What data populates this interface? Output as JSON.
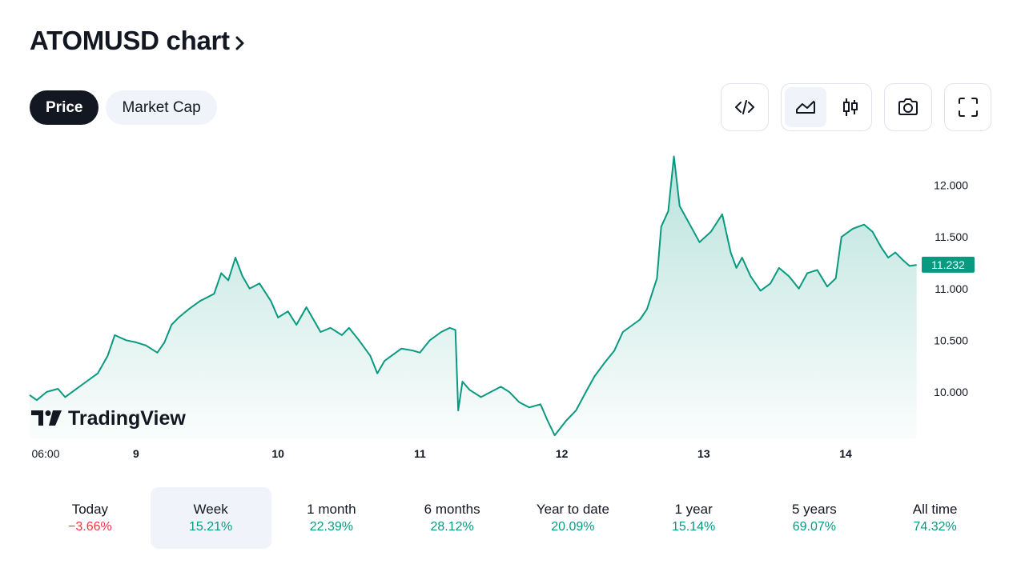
{
  "header": {
    "title": "ATOMUSD chart"
  },
  "tabs": [
    {
      "label": "Price",
      "active": true
    },
    {
      "label": "Market Cap",
      "active": false
    }
  ],
  "toolbar": {
    "buttons": [
      {
        "name": "embed-code",
        "icon": "code-icon"
      },
      {
        "name": "chart-style-area",
        "icon": "area-chart-icon",
        "selected": true
      },
      {
        "name": "chart-style-candles",
        "icon": "candlestick-icon"
      },
      {
        "name": "snapshot",
        "icon": "camera-icon"
      },
      {
        "name": "fullscreen",
        "icon": "fullscreen-icon"
      }
    ]
  },
  "watermark": {
    "text": "TradingView"
  },
  "colors": {
    "line": "#089981",
    "positive": "#089981",
    "negative": "#f23645",
    "dark": "#131722"
  },
  "periods": [
    {
      "label": "Today",
      "value": "−3.66%",
      "sign": "neg",
      "selected": false
    },
    {
      "label": "Week",
      "value": "15.21%",
      "sign": "pos",
      "selected": true
    },
    {
      "label": "1 month",
      "value": "22.39%",
      "sign": "pos",
      "selected": false
    },
    {
      "label": "6 months",
      "value": "28.12%",
      "sign": "pos",
      "selected": false
    },
    {
      "label": "Year to date",
      "value": "20.09%",
      "sign": "pos",
      "selected": false
    },
    {
      "label": "1 year",
      "value": "15.14%",
      "sign": "pos",
      "selected": false
    },
    {
      "label": "5 years",
      "value": "69.07%",
      "sign": "pos",
      "selected": false
    },
    {
      "label": "All time",
      "value": "74.32%",
      "sign": "pos",
      "selected": false
    }
  ],
  "chart_data": {
    "type": "area",
    "title": "",
    "xlabel": "",
    "ylabel": "",
    "grid": false,
    "legend": "none",
    "ylim": [
      9.55,
      12.4
    ],
    "xlim": [
      0,
      6.28
    ],
    "x_ticks": [
      {
        "label": "06:00",
        "x": 0
      },
      {
        "label": "9",
        "x": 0.75
      },
      {
        "label": "10",
        "x": 1.75
      },
      {
        "label": "11",
        "x": 2.75
      },
      {
        "label": "12",
        "x": 3.75
      },
      {
        "label": "13",
        "x": 4.75
      },
      {
        "label": "14",
        "x": 5.75
      }
    ],
    "y_ticks": [
      "10.000",
      "10.500",
      "11.000",
      "11.500",
      "12.000"
    ],
    "y_tick_values": [
      10.0,
      10.5,
      11.0,
      11.5,
      12.0
    ],
    "last_price": "11.232",
    "last_value": 11.232,
    "series": [
      {
        "points": [
          [
            0.0,
            9.97
          ],
          [
            0.05,
            9.92
          ],
          [
            0.12,
            10.0
          ],
          [
            0.2,
            10.03
          ],
          [
            0.25,
            9.95
          ],
          [
            0.32,
            10.02
          ],
          [
            0.4,
            10.1
          ],
          [
            0.48,
            10.18
          ],
          [
            0.55,
            10.35
          ],
          [
            0.6,
            10.55
          ],
          [
            0.68,
            10.5
          ],
          [
            0.75,
            10.48
          ],
          [
            0.82,
            10.45
          ],
          [
            0.9,
            10.38
          ],
          [
            0.95,
            10.48
          ],
          [
            1.0,
            10.65
          ],
          [
            1.05,
            10.72
          ],
          [
            1.12,
            10.8
          ],
          [
            1.2,
            10.88
          ],
          [
            1.3,
            10.95
          ],
          [
            1.35,
            11.15
          ],
          [
            1.4,
            11.08
          ],
          [
            1.45,
            11.3
          ],
          [
            1.5,
            11.12
          ],
          [
            1.55,
            11.0
          ],
          [
            1.62,
            11.05
          ],
          [
            1.7,
            10.88
          ],
          [
            1.75,
            10.72
          ],
          [
            1.82,
            10.78
          ],
          [
            1.88,
            10.65
          ],
          [
            1.95,
            10.82
          ],
          [
            2.0,
            10.7
          ],
          [
            2.05,
            10.58
          ],
          [
            2.12,
            10.62
          ],
          [
            2.2,
            10.55
          ],
          [
            2.25,
            10.62
          ],
          [
            2.32,
            10.5
          ],
          [
            2.4,
            10.35
          ],
          [
            2.45,
            10.18
          ],
          [
            2.5,
            10.3
          ],
          [
            2.55,
            10.35
          ],
          [
            2.62,
            10.42
          ],
          [
            2.7,
            10.4
          ],
          [
            2.75,
            10.38
          ],
          [
            2.82,
            10.5
          ],
          [
            2.9,
            10.58
          ],
          [
            2.96,
            10.62
          ],
          [
            3.0,
            10.6
          ],
          [
            3.02,
            9.82
          ],
          [
            3.05,
            10.1
          ],
          [
            3.1,
            10.02
          ],
          [
            3.18,
            9.95
          ],
          [
            3.25,
            10.0
          ],
          [
            3.32,
            10.05
          ],
          [
            3.38,
            10.0
          ],
          [
            3.45,
            9.9
          ],
          [
            3.52,
            9.85
          ],
          [
            3.6,
            9.88
          ],
          [
            3.65,
            9.72
          ],
          [
            3.7,
            9.58
          ],
          [
            3.78,
            9.72
          ],
          [
            3.85,
            9.82
          ],
          [
            3.92,
            10.0
          ],
          [
            3.98,
            10.15
          ],
          [
            4.05,
            10.28
          ],
          [
            4.12,
            10.4
          ],
          [
            4.18,
            10.58
          ],
          [
            4.25,
            10.65
          ],
          [
            4.3,
            10.7
          ],
          [
            4.35,
            10.8
          ],
          [
            4.42,
            11.1
          ],
          [
            4.45,
            11.6
          ],
          [
            4.5,
            11.75
          ],
          [
            4.54,
            12.28
          ],
          [
            4.58,
            11.8
          ],
          [
            4.62,
            11.7
          ],
          [
            4.66,
            11.6
          ],
          [
            4.72,
            11.45
          ],
          [
            4.8,
            11.55
          ],
          [
            4.88,
            11.72
          ],
          [
            4.94,
            11.35
          ],
          [
            4.98,
            11.2
          ],
          [
            5.02,
            11.3
          ],
          [
            5.08,
            11.12
          ],
          [
            5.15,
            10.98
          ],
          [
            5.22,
            11.05
          ],
          [
            5.28,
            11.2
          ],
          [
            5.35,
            11.12
          ],
          [
            5.42,
            11.0
          ],
          [
            5.48,
            11.15
          ],
          [
            5.55,
            11.18
          ],
          [
            5.62,
            11.02
          ],
          [
            5.68,
            11.1
          ],
          [
            5.72,
            11.5
          ],
          [
            5.8,
            11.58
          ],
          [
            5.88,
            11.62
          ],
          [
            5.94,
            11.55
          ],
          [
            6.0,
            11.4
          ],
          [
            6.05,
            11.3
          ],
          [
            6.1,
            11.35
          ],
          [
            6.15,
            11.28
          ],
          [
            6.2,
            11.22
          ],
          [
            6.25,
            11.23
          ]
        ]
      }
    ]
  }
}
